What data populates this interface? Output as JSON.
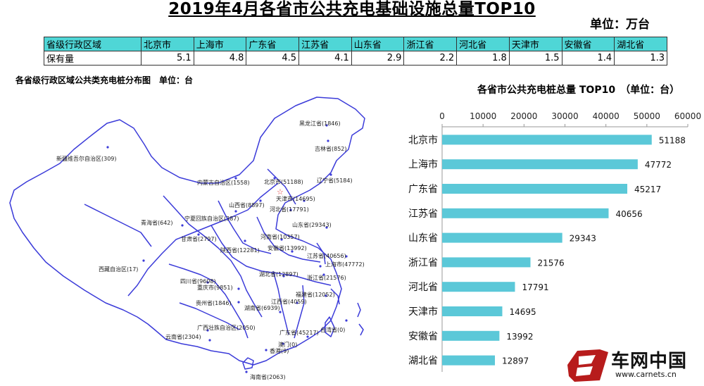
{
  "title": "2019年4月各省市公共充电基础设施总量TOP10",
  "unit_top": "单位：万台",
  "table": {
    "header_label": "省级行政区域",
    "row_label": "保有量",
    "regions": [
      "北京市",
      "上海市",
      "广东省",
      "江苏省",
      "山东省",
      "浙江省",
      "河北省",
      "天津市",
      "安徽省",
      "湖北省"
    ],
    "values": [
      "5.1",
      "4.8",
      "4.5",
      "4.1",
      "2.9",
      "2.2",
      "1.8",
      "1.5",
      "1.4",
      "1.3"
    ]
  },
  "map": {
    "title": "各省级行政区域公共类充电桩分布图　单位：台",
    "labels": [
      {
        "text": "黑龙江省(1846)"
      },
      {
        "text": "吉林省(852)"
      },
      {
        "text": "新疆维吾尔自治区(309)"
      },
      {
        "text": "内蒙古自治区(1558)"
      },
      {
        "text": "北京市(51188)"
      },
      {
        "text": "辽宁省(5184)"
      },
      {
        "text": "天津市(14695)"
      },
      {
        "text": "山西省(8897)"
      },
      {
        "text": "河北省(17791)"
      },
      {
        "text": "宁夏回族自治区(387)"
      },
      {
        "text": "青海省(642)"
      },
      {
        "text": "山东省(29343)"
      },
      {
        "text": "甘肃省(2797)"
      },
      {
        "text": "河南省(10357)"
      },
      {
        "text": "陕西省(12281)"
      },
      {
        "text": "安徽省(13992)"
      },
      {
        "text": "江苏省(40656)"
      },
      {
        "text": "上海市(47772)"
      },
      {
        "text": "西藏自治区(17)"
      },
      {
        "text": "湖北省(12897)"
      },
      {
        "text": "浙江省(21576)"
      },
      {
        "text": "四川省(9608)"
      },
      {
        "text": "重庆市(9851)"
      },
      {
        "text": "福建省(12052)"
      },
      {
        "text": "贵州省(1846)"
      },
      {
        "text": "江西省(4059)"
      },
      {
        "text": "湖南省(6939)"
      },
      {
        "text": "广西壮族自治区(2050)"
      },
      {
        "text": "台湾省(0)"
      },
      {
        "text": "云南省(2304)"
      },
      {
        "text": "广东省(45217)"
      },
      {
        "text": "澳门(0)"
      },
      {
        "text": "香港(9)"
      },
      {
        "text": "海南省(2063)"
      }
    ]
  },
  "chart_data": {
    "type": "bar",
    "orientation": "horizontal",
    "title": "各省市公共充电桩总量 TOP10　（单位：台）",
    "categories": [
      "北京市",
      "上海市",
      "广东省",
      "江苏省",
      "山东省",
      "浙江省",
      "河北省",
      "天津市",
      "安徽省",
      "湖北省"
    ],
    "values": [
      51188,
      47772,
      45217,
      40656,
      29343,
      21576,
      17791,
      14695,
      13992,
      12897
    ],
    "xlim": [
      0,
      60000
    ],
    "ticks": [
      0,
      10000,
      20000,
      30000,
      40000,
      50000,
      60000
    ],
    "axis_position": "top",
    "grid": false,
    "bar_color": "#5bc8d8"
  },
  "logo": {
    "name": "车网中国",
    "url": "www.carnets.cn"
  }
}
